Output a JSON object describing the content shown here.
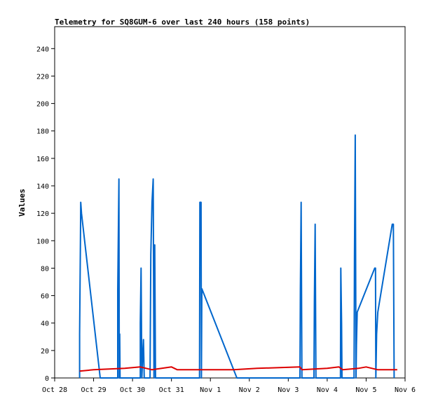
{
  "chart_data": {
    "type": "line",
    "title": "Telemetry for SQ8GUM-6 over last 240 hours (158 points)",
    "xlabel": "",
    "ylabel": "Values",
    "xlim": [
      0,
      9
    ],
    "ylim": [
      0,
      256
    ],
    "yticks": [
      0,
      20,
      40,
      60,
      80,
      100,
      120,
      140,
      160,
      180,
      200,
      220,
      240
    ],
    "xticks": [
      {
        "x": 0,
        "label": "Oct 28"
      },
      {
        "x": 1,
        "label": "Oct 29"
      },
      {
        "x": 2,
        "label": "Oct 30"
      },
      {
        "x": 3,
        "label": "Oct 31"
      },
      {
        "x": 4,
        "label": "Nov 1"
      },
      {
        "x": 5,
        "label": "Nov 2"
      },
      {
        "x": 6,
        "label": "Nov 3"
      },
      {
        "x": 7,
        "label": "Nov 4"
      },
      {
        "x": 8,
        "label": "Nov 5"
      },
      {
        "x": 9,
        "label": "Nov 6"
      }
    ],
    "grid": false,
    "legend": "none",
    "series": [
      {
        "color": "#0066cc",
        "points": [
          [
            0.64,
            0
          ],
          [
            0.64,
            32
          ],
          [
            0.66,
            96
          ],
          [
            0.67,
            128
          ],
          [
            0.69,
            120
          ],
          [
            1.17,
            0
          ],
          [
            1.62,
            0
          ],
          [
            1.62,
            64
          ],
          [
            1.65,
            145
          ],
          [
            1.66,
            0
          ],
          [
            1.67,
            32
          ],
          [
            1.68,
            0
          ],
          [
            2.2,
            0
          ],
          [
            2.2,
            40
          ],
          [
            2.22,
            80
          ],
          [
            2.24,
            0
          ],
          [
            2.26,
            16
          ],
          [
            2.28,
            28
          ],
          [
            2.3,
            0
          ],
          [
            2.45,
            0
          ],
          [
            2.47,
            90
          ],
          [
            2.5,
            128
          ],
          [
            2.53,
            145
          ],
          [
            2.55,
            0
          ],
          [
            2.57,
            97
          ],
          [
            2.59,
            0
          ],
          [
            3.72,
            0
          ],
          [
            3.73,
            128
          ],
          [
            3.76,
            128
          ],
          [
            3.77,
            0
          ],
          [
            3.78,
            65
          ],
          [
            4.68,
            0
          ],
          [
            6.3,
            0
          ],
          [
            6.31,
            64
          ],
          [
            6.33,
            128
          ],
          [
            6.35,
            0
          ],
          [
            6.66,
            0
          ],
          [
            6.67,
            56
          ],
          [
            6.69,
            112
          ],
          [
            6.71,
            0
          ],
          [
            7.34,
            0
          ],
          [
            7.35,
            80
          ],
          [
            7.37,
            40
          ],
          [
            7.38,
            0
          ],
          [
            7.69,
            0
          ],
          [
            7.7,
            88
          ],
          [
            7.72,
            177
          ],
          [
            7.74,
            0
          ],
          [
            7.75,
            24
          ],
          [
            7.77,
            48
          ],
          [
            8.22,
            80
          ],
          [
            8.24,
            80
          ],
          [
            8.25,
            0
          ],
          [
            8.27,
            32
          ],
          [
            8.3,
            48
          ],
          [
            8.67,
            112
          ],
          [
            8.7,
            112
          ],
          [
            8.72,
            0
          ]
        ]
      },
      {
        "color": "#dd0000",
        "points": [
          [
            0.64,
            5
          ],
          [
            1.0,
            6
          ],
          [
            1.8,
            7
          ],
          [
            2.2,
            8
          ],
          [
            2.5,
            6
          ],
          [
            3.0,
            8
          ],
          [
            3.15,
            6
          ],
          [
            4.6,
            6
          ],
          [
            5.2,
            7
          ],
          [
            6.3,
            8
          ],
          [
            6.35,
            6
          ],
          [
            7.0,
            7
          ],
          [
            7.3,
            8
          ],
          [
            7.4,
            6
          ],
          [
            7.8,
            7
          ],
          [
            8.0,
            8
          ],
          [
            8.3,
            6
          ],
          [
            8.8,
            6
          ]
        ]
      }
    ]
  }
}
